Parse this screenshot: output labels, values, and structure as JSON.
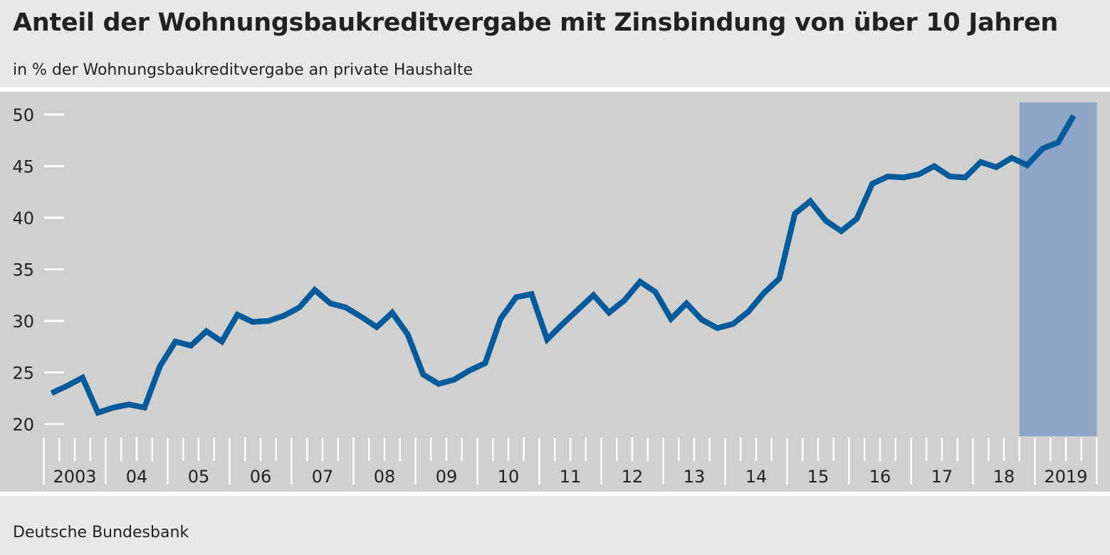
{
  "title": "Anteil der Wohnungsbaukreditvergabe mit Zinsbindung von über 10 Jahren",
  "subtitle": "in % der Wohnungsbaukreditvergabe an private Haushalte",
  "source": "Deutsche Bundesbank",
  "colors": {
    "line": "#005b9c",
    "plot_background": "#d0d0cf",
    "highlight": "#8da6c8",
    "page_background": "#e8e8e8"
  },
  "chart_data": {
    "type": "line",
    "title": "Anteil der Wohnungsbaukreditvergabe mit Zinsbindung von über 10 Jahren",
    "subtitle": "in % der Wohnungsbaukreditvergabe an private Haushalte",
    "xlabel": "",
    "ylabel": "",
    "frequency": "quarterly",
    "x_start": "2003 Q1",
    "x_end": "2019 Q3",
    "ylim": [
      20,
      50
    ],
    "yticks": [
      20,
      25,
      30,
      35,
      40,
      45,
      50
    ],
    "xtick_labels": [
      "2003",
      "04",
      "05",
      "06",
      "07",
      "08",
      "09",
      "10",
      "11",
      "12",
      "13",
      "14",
      "15",
      "16",
      "17",
      "18",
      "2019"
    ],
    "grid": false,
    "highlight_period": [
      "2018 Q4",
      "2019 Q4"
    ],
    "values": [
      23.0,
      23.7,
      24.5,
      21.1,
      21.6,
      21.9,
      21.6,
      25.6,
      28.0,
      27.6,
      29.0,
      28.0,
      30.6,
      29.9,
      30.0,
      30.5,
      31.3,
      33.0,
      31.7,
      31.3,
      30.4,
      29.4,
      30.8,
      28.7,
      24.8,
      23.9,
      24.3,
      25.2,
      25.9,
      30.2,
      32.3,
      32.6,
      28.2,
      29.7,
      31.1,
      32.5,
      30.8,
      32.0,
      33.8,
      32.8,
      30.2,
      31.7,
      30.1,
      29.3,
      29.7,
      30.9,
      32.7,
      34.1,
      40.4,
      41.6,
      39.7,
      38.7,
      39.9,
      43.3,
      44.0,
      43.9,
      44.2,
      45.0,
      44.0,
      43.9,
      45.4,
      44.9,
      45.8,
      45.1,
      46.7,
      47.3,
      49.9
    ]
  }
}
